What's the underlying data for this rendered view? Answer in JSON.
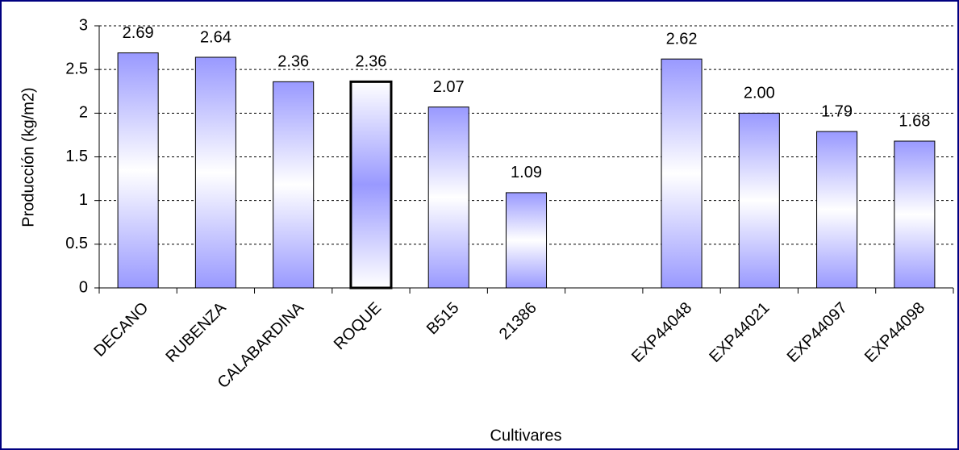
{
  "chart_data": {
    "type": "bar",
    "x_label": "Cultivares",
    "y_label": "Producción (kg/m2)",
    "categories": [
      "DECANO",
      "RUBENZA",
      "CALABARDINA",
      "ROQUE",
      "B515",
      "21386",
      null,
      "EXP44048",
      "EXP44021",
      "EXP44097",
      "EXP44098"
    ],
    "values": [
      2.69,
      2.64,
      2.36,
      2.36,
      2.07,
      1.09,
      null,
      2.62,
      2.0,
      1.79,
      1.68
    ],
    "value_labels": [
      "2.69",
      "2.64",
      "2.36",
      "2.36",
      "2.07",
      "1.09",
      null,
      "2.62",
      "2.00",
      "1.79",
      "1.68"
    ],
    "color": "#9999ff",
    "highlight_index": 3,
    "ylim": [
      0,
      3
    ],
    "yticks": [
      0,
      0.5,
      1,
      1.5,
      2,
      2.5,
      3
    ],
    "grid": true
  }
}
